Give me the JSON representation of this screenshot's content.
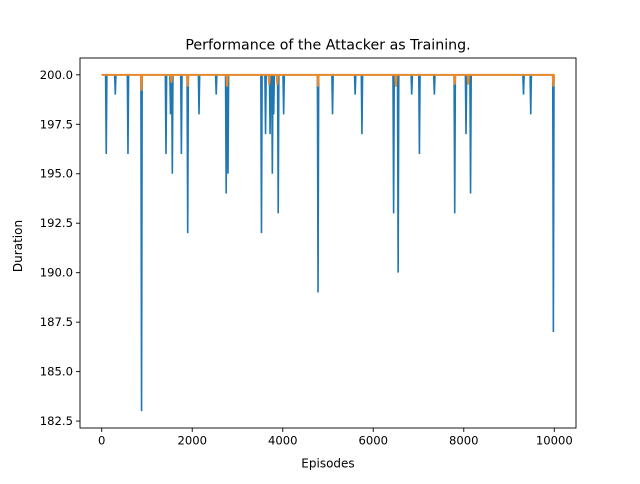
{
  "chart_data": {
    "type": "line",
    "title": "Performance of the Attacker as Training.",
    "xlabel": "Episodes",
    "ylabel": "Duration",
    "xlim": [
      -480,
      10480
    ],
    "ylim": [
      182.15,
      200.85
    ],
    "xticks": [
      0,
      2000,
      4000,
      6000,
      8000,
      10000
    ],
    "yticks": [
      182.5,
      185.0,
      187.5,
      190.0,
      192.5,
      195.0,
      197.5,
      200.0
    ],
    "xtick_labels": [
      "0",
      "2000",
      "4000",
      "6000",
      "8000",
      "10000"
    ],
    "ytick_labels": [
      "182.5",
      "185.0",
      "187.5",
      "190.0",
      "192.5",
      "195.0",
      "197.5",
      "200.0"
    ],
    "grid": false,
    "legend": "none",
    "baseline": 200,
    "series": [
      {
        "color": "#1f77b4",
        "dips": [
          {
            "x": 100,
            "y": 196
          },
          {
            "x": 300,
            "y": 199
          },
          {
            "x": 580,
            "y": 196
          },
          {
            "x": 880,
            "y": 183
          },
          {
            "x": 1420,
            "y": 196
          },
          {
            "x": 1520,
            "y": 198
          },
          {
            "x": 1560,
            "y": 195
          },
          {
            "x": 1760,
            "y": 196
          },
          {
            "x": 1900,
            "y": 192
          },
          {
            "x": 2150,
            "y": 198
          },
          {
            "x": 2530,
            "y": 199
          },
          {
            "x": 2750,
            "y": 194
          },
          {
            "x": 2790,
            "y": 195
          },
          {
            "x": 3530,
            "y": 192
          },
          {
            "x": 3620,
            "y": 197
          },
          {
            "x": 3720,
            "y": 197
          },
          {
            "x": 3770,
            "y": 195
          },
          {
            "x": 3800,
            "y": 198
          },
          {
            "x": 3900,
            "y": 193
          },
          {
            "x": 4020,
            "y": 198
          },
          {
            "x": 4780,
            "y": 189
          },
          {
            "x": 5100,
            "y": 198
          },
          {
            "x": 5600,
            "y": 199
          },
          {
            "x": 5750,
            "y": 197
          },
          {
            "x": 6450,
            "y": 193
          },
          {
            "x": 6550,
            "y": 190
          },
          {
            "x": 6850,
            "y": 199
          },
          {
            "x": 7020,
            "y": 196
          },
          {
            "x": 7350,
            "y": 199
          },
          {
            "x": 7800,
            "y": 193
          },
          {
            "x": 8050,
            "y": 197
          },
          {
            "x": 8150,
            "y": 194
          },
          {
            "x": 9320,
            "y": 199
          },
          {
            "x": 9480,
            "y": 198
          },
          {
            "x": 9980,
            "y": 187
          }
        ]
      },
      {
        "color": "#e8892b",
        "dips": [
          {
            "x": 880,
            "y": 199.2
          },
          {
            "x": 1540,
            "y": 199.6
          },
          {
            "x": 1900,
            "y": 199.4
          },
          {
            "x": 2770,
            "y": 199.4
          },
          {
            "x": 3700,
            "y": 199.5
          },
          {
            "x": 3880,
            "y": 199.5
          },
          {
            "x": 4780,
            "y": 199.4
          },
          {
            "x": 6500,
            "y": 199.4
          },
          {
            "x": 7800,
            "y": 199.5
          },
          {
            "x": 8100,
            "y": 199.5
          },
          {
            "x": 9980,
            "y": 199.4
          }
        ]
      }
    ]
  }
}
